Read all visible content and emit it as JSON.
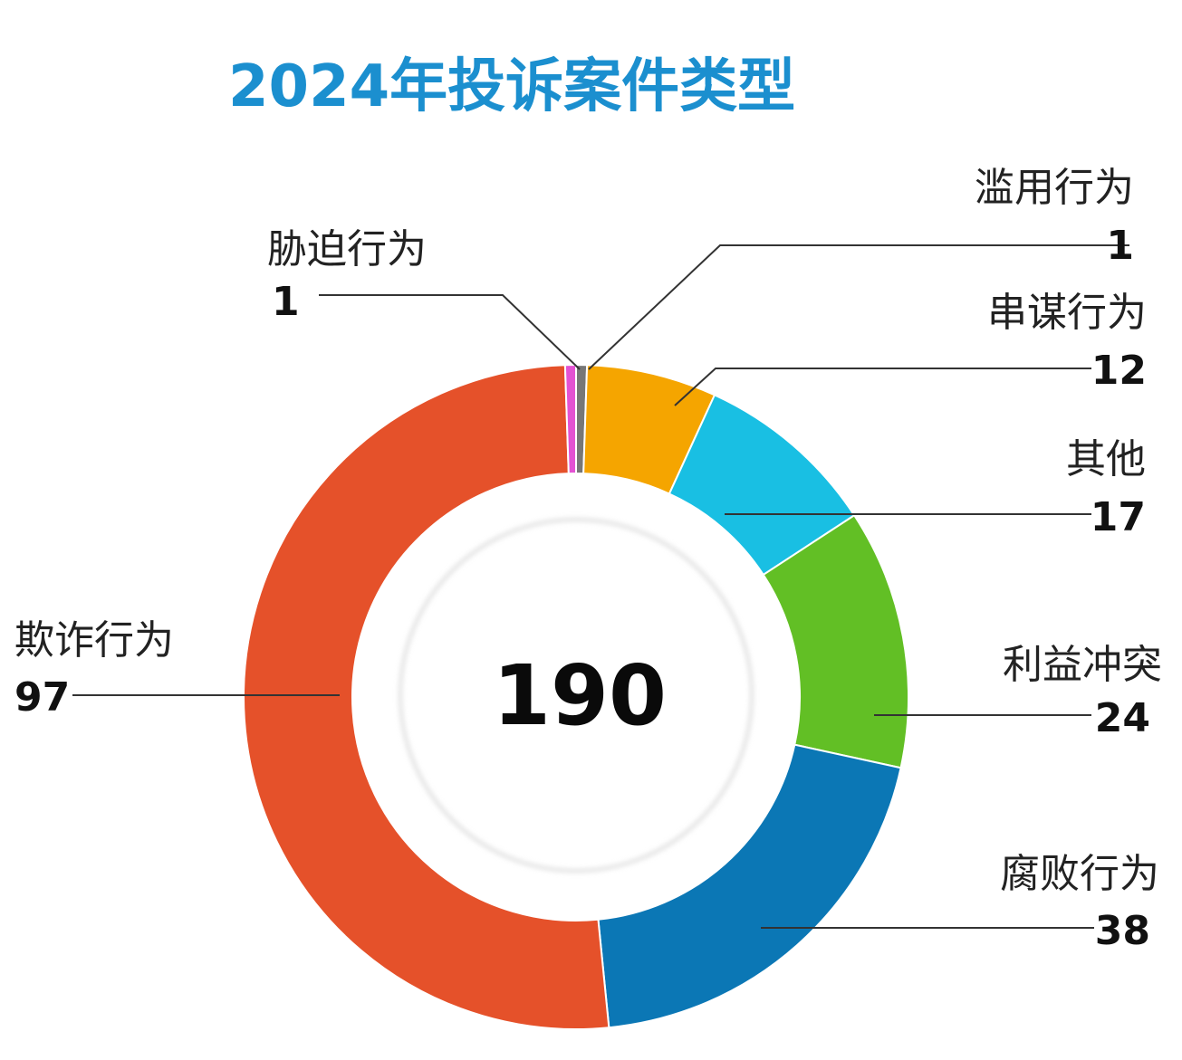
{
  "chart_data": {
    "type": "pie",
    "variant": "donut",
    "title": "2024年投诉案件类型",
    "total": "190",
    "slices": [
      {
        "label": "滥用行为",
        "value": 1,
        "color": "#777777"
      },
      {
        "label": "串谋行为",
        "value": 12,
        "color": "#f5a500"
      },
      {
        "label": "其他",
        "value": 17,
        "color": "#19bfe3"
      },
      {
        "label": "利益冲突",
        "value": 24,
        "color": "#62bf25"
      },
      {
        "label": "腐败行为",
        "value": 38,
        "color": "#0b77b5"
      },
      {
        "label": "欺诈行为",
        "value": 97,
        "color": "#e5512a"
      },
      {
        "label": "胁迫行为",
        "value": 1,
        "color": "#e352d3"
      }
    ],
    "legend": "none"
  }
}
